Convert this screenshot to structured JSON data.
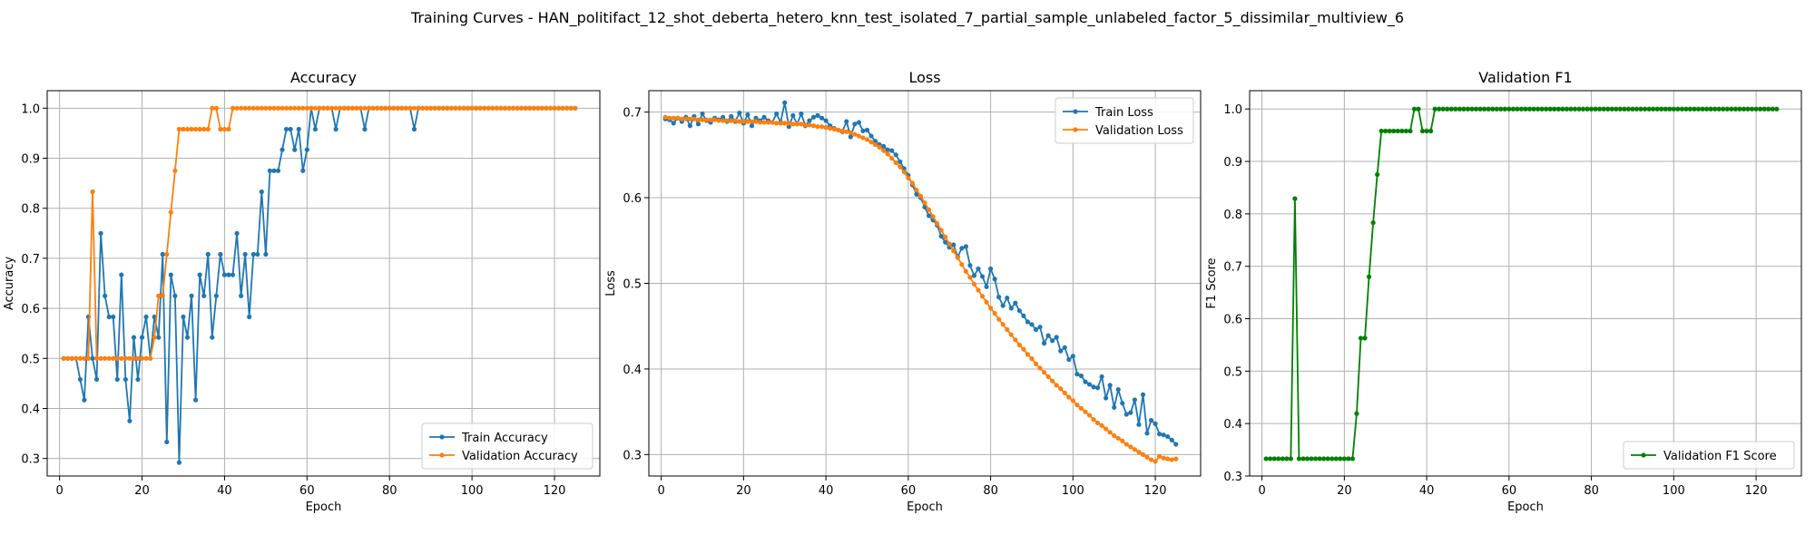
{
  "figure": {
    "suptitle": "Training Curves - HAN_politifact_12_shot_deberta_hetero_knn_test_isolated_7_partial_sample_unlabeled_factor_5_dissimilar_multiview_6"
  },
  "colors": {
    "blue": "#1f77b4",
    "orange": "#ff7f0e",
    "green": "#008000",
    "grid": "#b0b0b0"
  },
  "chart_data": [
    {
      "type": "line",
      "title": "Accuracy",
      "xlabel": "Epoch",
      "ylabel": "Accuracy",
      "xlim": [
        -3,
        131
      ],
      "ylim": [
        0.265,
        1.035
      ],
      "xticks": [
        0,
        20,
        40,
        60,
        80,
        100,
        120
      ],
      "yticks": [
        0.3,
        0.4,
        0.5,
        0.6,
        0.7,
        0.8,
        0.9,
        1.0
      ],
      "grid": true,
      "legend_position": "lower right",
      "series": [
        {
          "name": "Train Accuracy",
          "color": "#1f77b4",
          "x_start": 1,
          "values": [
            0.5,
            0.5,
            0.5,
            0.5,
            0.458,
            0.417,
            0.583,
            0.5,
            0.458,
            0.75,
            0.625,
            0.583,
            0.583,
            0.458,
            0.667,
            0.458,
            0.375,
            0.542,
            0.458,
            0.542,
            0.583,
            0.5,
            0.583,
            0.542,
            0.708,
            0.333,
            0.667,
            0.625,
            0.292,
            0.583,
            0.542,
            0.625,
            0.417,
            0.667,
            0.625,
            0.708,
            0.542,
            0.625,
            0.708,
            0.667,
            0.667,
            0.667,
            0.75,
            0.625,
            0.708,
            0.583,
            0.708,
            0.708,
            0.833,
            0.708,
            0.875,
            0.875,
            0.875,
            0.917,
            0.958,
            0.958,
            0.917,
            0.958,
            0.875,
            0.917,
            1.0,
            0.958,
            1.0,
            1.0,
            1.0,
            1.0,
            0.958,
            1.0,
            1.0,
            1.0,
            1.0,
            1.0,
            1.0,
            0.958,
            1.0,
            1.0,
            1.0,
            1.0,
            1.0,
            1.0,
            1.0,
            1.0,
            1.0,
            1.0,
            1.0,
            0.958,
            1.0,
            1.0,
            1.0,
            1.0,
            1.0,
            1.0,
            1.0,
            1.0,
            1.0,
            1.0,
            1.0,
            1.0,
            1.0,
            1.0,
            1.0,
            1.0,
            1.0,
            1.0,
            1.0,
            1.0,
            1.0,
            1.0,
            1.0,
            1.0,
            1.0,
            1.0,
            1.0,
            1.0,
            1.0,
            1.0,
            1.0,
            1.0,
            1.0,
            1.0,
            1.0,
            1.0,
            1.0,
            1.0,
            1.0
          ]
        },
        {
          "name": "Validation Accuracy",
          "color": "#ff7f0e",
          "x_start": 1,
          "values": [
            0.5,
            0.5,
            0.5,
            0.5,
            0.5,
            0.5,
            0.5,
            0.833,
            0.5,
            0.5,
            0.5,
            0.5,
            0.5,
            0.5,
            0.5,
            0.5,
            0.5,
            0.5,
            0.5,
            0.5,
            0.5,
            0.5,
            0.542,
            0.625,
            0.625,
            0.708,
            0.792,
            0.875,
            0.958,
            0.958,
            0.958,
            0.958,
            0.958,
            0.958,
            0.958,
            0.958,
            1.0,
            1.0,
            0.958,
            0.958,
            0.958,
            1.0,
            1.0,
            1.0,
            1.0,
            1.0,
            1.0,
            1.0,
            1.0,
            1.0,
            1.0,
            1.0,
            1.0,
            1.0,
            1.0,
            1.0,
            1.0,
            1.0,
            1.0,
            1.0,
            1.0,
            1.0,
            1.0,
            1.0,
            1.0,
            1.0,
            1.0,
            1.0,
            1.0,
            1.0,
            1.0,
            1.0,
            1.0,
            1.0,
            1.0,
            1.0,
            1.0,
            1.0,
            1.0,
            1.0,
            1.0,
            1.0,
            1.0,
            1.0,
            1.0,
            1.0,
            1.0,
            1.0,
            1.0,
            1.0,
            1.0,
            1.0,
            1.0,
            1.0,
            1.0,
            1.0,
            1.0,
            1.0,
            1.0,
            1.0,
            1.0,
            1.0,
            1.0,
            1.0,
            1.0,
            1.0,
            1.0,
            1.0,
            1.0,
            1.0,
            1.0,
            1.0,
            1.0,
            1.0,
            1.0,
            1.0,
            1.0,
            1.0,
            1.0,
            1.0,
            1.0,
            1.0,
            1.0,
            1.0,
            1.0
          ]
        }
      ]
    },
    {
      "type": "line",
      "title": "Loss",
      "xlabel": "Epoch",
      "ylabel": "Loss",
      "xlim": [
        -3,
        131
      ],
      "ylim": [
        0.275,
        0.725
      ],
      "xticks": [
        0,
        20,
        40,
        60,
        80,
        100,
        120
      ],
      "yticks": [
        0.3,
        0.4,
        0.5,
        0.6,
        0.7
      ],
      "grid": true,
      "legend_position": "upper right",
      "series": [
        {
          "name": "Train Loss",
          "color": "#1f77b4",
          "x_start": 1,
          "values": [
            0.692,
            0.691,
            0.687,
            0.693,
            0.689,
            0.694,
            0.684,
            0.695,
            0.686,
            0.698,
            0.69,
            0.688,
            0.693,
            0.691,
            0.694,
            0.689,
            0.695,
            0.689,
            0.699,
            0.687,
            0.697,
            0.684,
            0.693,
            0.69,
            0.694,
            0.69,
            0.688,
            0.698,
            0.688,
            0.711,
            0.683,
            0.696,
            0.686,
            0.698,
            0.684,
            0.69,
            0.694,
            0.696,
            0.693,
            0.69,
            0.684,
            0.681,
            0.679,
            0.677,
            0.689,
            0.671,
            0.686,
            0.688,
            0.678,
            0.679,
            0.672,
            0.666,
            0.662,
            0.66,
            0.656,
            0.655,
            0.65,
            0.642,
            0.634,
            0.626,
            0.615,
            0.604,
            0.6,
            0.589,
            0.579,
            0.574,
            0.568,
            0.555,
            0.548,
            0.542,
            0.545,
            0.531,
            0.541,
            0.543,
            0.521,
            0.509,
            0.517,
            0.508,
            0.496,
            0.517,
            0.505,
            0.484,
            0.474,
            0.483,
            0.471,
            0.477,
            0.468,
            0.462,
            0.455,
            0.452,
            0.446,
            0.449,
            0.43,
            0.439,
            0.433,
            0.437,
            0.421,
            0.425,
            0.411,
            0.415,
            0.394,
            0.392,
            0.385,
            0.382,
            0.379,
            0.378,
            0.391,
            0.366,
            0.381,
            0.355,
            0.376,
            0.36,
            0.347,
            0.349,
            0.364,
            0.335,
            0.37,
            0.325,
            0.34,
            0.336,
            0.324,
            0.323,
            0.321,
            0.317,
            0.312
          ]
        },
        {
          "name": "Validation Loss",
          "color": "#ff7f0e",
          "x_start": 1,
          "values": [
            0.694,
            0.693,
            0.693,
            0.693,
            0.692,
            0.692,
            0.692,
            0.692,
            0.691,
            0.691,
            0.691,
            0.691,
            0.691,
            0.69,
            0.69,
            0.69,
            0.69,
            0.69,
            0.689,
            0.689,
            0.689,
            0.689,
            0.689,
            0.688,
            0.688,
            0.688,
            0.688,
            0.687,
            0.687,
            0.687,
            0.687,
            0.686,
            0.686,
            0.686,
            0.685,
            0.685,
            0.684,
            0.683,
            0.683,
            0.682,
            0.681,
            0.68,
            0.679,
            0.678,
            0.677,
            0.676,
            0.674,
            0.672,
            0.67,
            0.668,
            0.665,
            0.662,
            0.659,
            0.655,
            0.651,
            0.646,
            0.641,
            0.636,
            0.63,
            0.623,
            0.617,
            0.609,
            0.602,
            0.594,
            0.586,
            0.578,
            0.57,
            0.562,
            0.554,
            0.546,
            0.538,
            0.53,
            0.522,
            0.514,
            0.507,
            0.499,
            0.492,
            0.485,
            0.478,
            0.471,
            0.465,
            0.458,
            0.452,
            0.446,
            0.44,
            0.434,
            0.428,
            0.423,
            0.417,
            0.412,
            0.406,
            0.401,
            0.396,
            0.391,
            0.386,
            0.381,
            0.377,
            0.372,
            0.367,
            0.363,
            0.358,
            0.354,
            0.35,
            0.346,
            0.341,
            0.337,
            0.334,
            0.33,
            0.326,
            0.322,
            0.319,
            0.316,
            0.312,
            0.309,
            0.306,
            0.303,
            0.3,
            0.297,
            0.294,
            0.292,
            0.298,
            0.296,
            0.295,
            0.294,
            0.295
          ]
        }
      ]
    },
    {
      "type": "line",
      "title": "Validation F1",
      "xlabel": "Epoch",
      "ylabel": "F1 Score",
      "xlim": [
        -3,
        131
      ],
      "ylim": [
        0.3,
        1.035
      ],
      "xticks": [
        0,
        20,
        40,
        60,
        80,
        100,
        120
      ],
      "yticks": [
        0.3,
        0.4,
        0.5,
        0.6,
        0.7,
        0.8,
        0.9,
        1.0
      ],
      "grid": true,
      "legend_position": "lower right",
      "series": [
        {
          "name": "Validation F1 Score",
          "color": "#008000",
          "x_start": 1,
          "values": [
            0.333,
            0.333,
            0.333,
            0.333,
            0.333,
            0.333,
            0.333,
            0.829,
            0.333,
            0.333,
            0.333,
            0.333,
            0.333,
            0.333,
            0.333,
            0.333,
            0.333,
            0.333,
            0.333,
            0.333,
            0.333,
            0.333,
            0.419,
            0.563,
            0.563,
            0.68,
            0.783,
            0.875,
            0.958,
            0.958,
            0.958,
            0.958,
            0.958,
            0.958,
            0.958,
            0.958,
            1.0,
            1.0,
            0.958,
            0.958,
            0.958,
            1.0,
            1.0,
            1.0,
            1.0,
            1.0,
            1.0,
            1.0,
            1.0,
            1.0,
            1.0,
            1.0,
            1.0,
            1.0,
            1.0,
            1.0,
            1.0,
            1.0,
            1.0,
            1.0,
            1.0,
            1.0,
            1.0,
            1.0,
            1.0,
            1.0,
            1.0,
            1.0,
            1.0,
            1.0,
            1.0,
            1.0,
            1.0,
            1.0,
            1.0,
            1.0,
            1.0,
            1.0,
            1.0,
            1.0,
            1.0,
            1.0,
            1.0,
            1.0,
            1.0,
            1.0,
            1.0,
            1.0,
            1.0,
            1.0,
            1.0,
            1.0,
            1.0,
            1.0,
            1.0,
            1.0,
            1.0,
            1.0,
            1.0,
            1.0,
            1.0,
            1.0,
            1.0,
            1.0,
            1.0,
            1.0,
            1.0,
            1.0,
            1.0,
            1.0,
            1.0,
            1.0,
            1.0,
            1.0,
            1.0,
            1.0,
            1.0,
            1.0,
            1.0,
            1.0,
            1.0,
            1.0,
            1.0,
            1.0,
            1.0
          ]
        }
      ]
    }
  ]
}
